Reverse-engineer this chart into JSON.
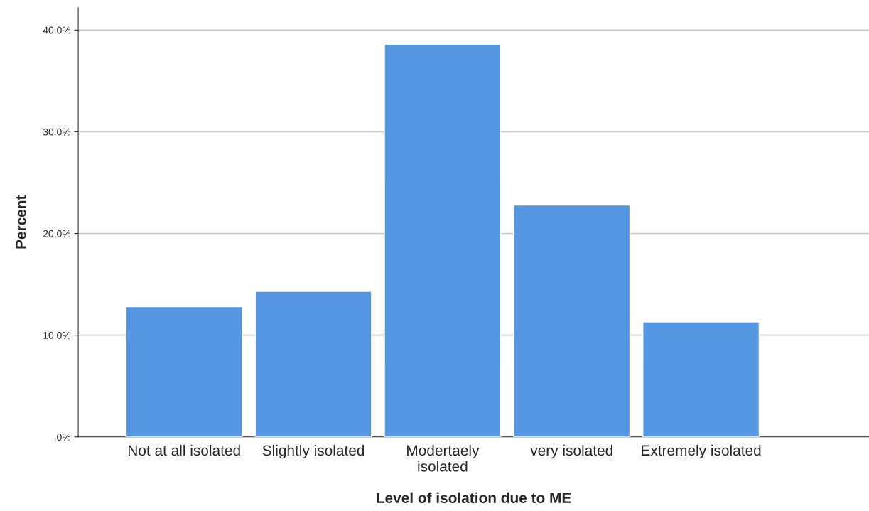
{
  "chart_data": {
    "type": "bar",
    "categories": [
      "Not at all isolated",
      "Slightly isolated",
      "Modertaely\nisolated",
      "very isolated",
      "Extremely isolated"
    ],
    "values": [
      12.8,
      14.3,
      38.6,
      22.8,
      11.3
    ],
    "color": "#5596e3",
    "xlabel": "Level of isolation due to ME",
    "ylabel": "Percent",
    "ylim": [
      0,
      42.2
    ],
    "yticks": [
      {
        "value": 0,
        "label": ".0%"
      },
      {
        "value": 10,
        "label": "10.0%"
      },
      {
        "value": 20,
        "label": "20.0%"
      },
      {
        "value": 30,
        "label": "30.0%"
      },
      {
        "value": 40,
        "label": "40.0%"
      }
    ],
    "grid": "y"
  }
}
